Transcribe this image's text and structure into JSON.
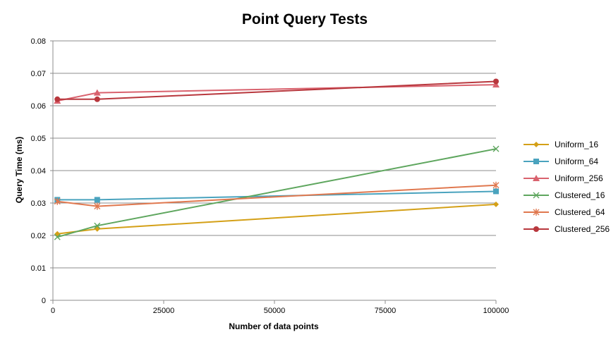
{
  "chart_data": {
    "type": "line",
    "title": "Point Query Tests",
    "xlabel": "Number of data points",
    "ylabel": "Query Time (ms)",
    "xlim": [
      0,
      100000
    ],
    "ylim": [
      0,
      0.08
    ],
    "xticks": [
      0,
      25000,
      50000,
      75000,
      100000
    ],
    "xtick_labels": [
      "0",
      "25000",
      "50000",
      "75000",
      "100000"
    ],
    "yticks": [
      0,
      0.01,
      0.02,
      0.03,
      0.04,
      0.05,
      0.06,
      0.07,
      0.08
    ],
    "ytick_labels": [
      "0",
      "0.01",
      "0.02",
      "0.03",
      "0.04",
      "0.05",
      "0.06",
      "0.07",
      "0.08"
    ],
    "grid": "horizontal",
    "legend_position": "right",
    "series": [
      {
        "name": "Uniform_16",
        "color": "#d4a017",
        "marker": "diamond",
        "x": [
          1000,
          10000,
          100000
        ],
        "y": [
          0.0205,
          0.022,
          0.0296
        ]
      },
      {
        "name": "Uniform_64",
        "color": "#4aa3be",
        "marker": "square",
        "x": [
          1000,
          10000,
          100000
        ],
        "y": [
          0.031,
          0.031,
          0.0336
        ]
      },
      {
        "name": "Uniform_256",
        "color": "#d9626e",
        "marker": "triangle",
        "x": [
          1000,
          10000,
          100000
        ],
        "y": [
          0.0615,
          0.064,
          0.0665
        ]
      },
      {
        "name": "Clustered_16",
        "color": "#5ea65e",
        "marker": "x",
        "x": [
          1000,
          10000,
          100000
        ],
        "y": [
          0.0195,
          0.023,
          0.0467
        ]
      },
      {
        "name": "Clustered_64",
        "color": "#e0784f",
        "marker": "star",
        "x": [
          1000,
          10000,
          100000
        ],
        "y": [
          0.0305,
          0.029,
          0.0355
        ]
      },
      {
        "name": "Clustered_256",
        "color": "#b8373d",
        "marker": "circle",
        "x": [
          1000,
          10000,
          100000
        ],
        "y": [
          0.062,
          0.062,
          0.0675
        ]
      }
    ]
  }
}
